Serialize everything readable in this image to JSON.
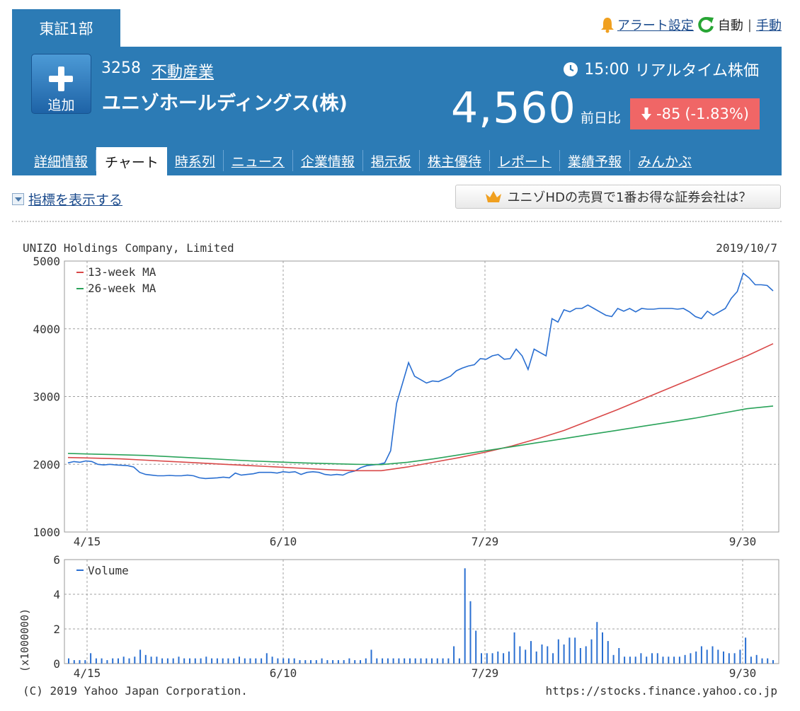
{
  "market": "東証1部",
  "top_links": {
    "alert": "アラート設定",
    "auto": "自動",
    "manual": "手動"
  },
  "stock": {
    "add_label": "追加",
    "code": "3258",
    "sector": "不動産業",
    "name": "ユニゾホールディングス(株)",
    "time": "15:00",
    "realtime_label": "リアルタイム株価",
    "price": "4,560",
    "prev_label": "前日比",
    "change": "-85",
    "change_pct": "(-1.83%)"
  },
  "nav": [
    "詳細情報",
    "チャート",
    "時系列",
    "ニュース",
    "企業情報",
    "掲示板",
    "株主優待",
    "レポート",
    "業績予報",
    "みんかぶ"
  ],
  "nav_active": 1,
  "indicator_toggle": "指標を表示する",
  "broker_button": "ユニゾHDの売買で1番お得な証券会社は？",
  "colors": {
    "header": "#2c7bb5",
    "change_bg": "#f06666",
    "price_line": "#2a6fd1",
    "ma13": "#d94848",
    "ma26": "#2aa35a"
  },
  "chart_data": [
    {
      "type": "line",
      "title": "UNIZO Holdings Company, Limited",
      "date": "2019/10/7",
      "x_tick_labels": [
        "4/15",
        "6/10",
        "7/29",
        "9/30"
      ],
      "ylim": [
        1000,
        5000
      ],
      "y_ticks": [
        1000,
        2000,
        3000,
        4000,
        5000
      ],
      "grid": true,
      "legend": "top-left",
      "series": [
        {
          "name": "Price",
          "values": [
            2020,
            2040,
            2030,
            2050,
            2040,
            2000,
            1990,
            2000,
            1990,
            1985,
            1980,
            1960,
            1880,
            1850,
            1840,
            1830,
            1830,
            1835,
            1830,
            1830,
            1840,
            1830,
            1800,
            1790,
            1795,
            1800,
            1810,
            1800,
            1870,
            1840,
            1850,
            1860,
            1880,
            1880,
            1880,
            1870,
            1890,
            1880,
            1890,
            1850,
            1880,
            1890,
            1880,
            1850,
            1840,
            1850,
            1840,
            1880,
            1900,
            1950,
            1980,
            1990,
            2000,
            2020,
            2200,
            2900,
            3200,
            3500,
            3300,
            3250,
            3200,
            3230,
            3220,
            3260,
            3300,
            3380,
            3420,
            3450,
            3470,
            3560,
            3550,
            3600,
            3620,
            3550,
            3560,
            3700,
            3600,
            3400,
            3700,
            3650,
            3600,
            4150,
            4100,
            4280,
            4250,
            4300,
            4300,
            4350,
            4300,
            4250,
            4200,
            4180,
            4300,
            4260,
            4300,
            4250,
            4300,
            4290,
            4290,
            4300,
            4300,
            4300,
            4290,
            4300,
            4250,
            4180,
            4150,
            4260,
            4200,
            4250,
            4300,
            4450,
            4550,
            4820,
            4750,
            4650,
            4650,
            4640,
            4560
          ]
        },
        {
          "name": "13-week MA",
          "values": [
            2100,
            2090,
            2080,
            2060,
            2040,
            2020,
            2000,
            1980,
            1960,
            1940,
            1920,
            1905,
            1905,
            1960,
            2030,
            2100,
            2180,
            2270,
            2380,
            2500,
            2650,
            2800,
            2960,
            3120,
            3280,
            3440,
            3600,
            3780
          ]
        },
        {
          "name": "26-week MA",
          "values": [
            2160,
            2150,
            2140,
            2130,
            2110,
            2090,
            2070,
            2050,
            2035,
            2020,
            2010,
            2000,
            1995,
            2030,
            2080,
            2140,
            2200,
            2260,
            2320,
            2380,
            2440,
            2500,
            2560,
            2620,
            2680,
            2750,
            2820,
            2860
          ]
        }
      ]
    },
    {
      "type": "bar",
      "ylabel": "(x1000000)",
      "x_tick_labels": [
        "4/15",
        "6/10",
        "7/29",
        "9/30"
      ],
      "ylim": [
        0,
        6
      ],
      "y_ticks": [
        0,
        2,
        4,
        6
      ],
      "grid": true,
      "series": [
        {
          "name": "Volume",
          "values": [
            0.3,
            0.2,
            0.2,
            0.2,
            0.6,
            0.3,
            0.3,
            0.2,
            0.3,
            0.3,
            0.4,
            0.3,
            0.4,
            0.8,
            0.5,
            0.4,
            0.4,
            0.3,
            0.3,
            0.3,
            0.4,
            0.3,
            0.3,
            0.3,
            0.3,
            0.4,
            0.3,
            0.3,
            0.3,
            0.3,
            0.3,
            0.4,
            0.3,
            0.3,
            0.3,
            0.3,
            0.6,
            0.4,
            0.3,
            0.3,
            0.3,
            0.3,
            0.2,
            0.2,
            0.2,
            0.2,
            0.3,
            0.2,
            0.2,
            0.2,
            0.2,
            0.3,
            0.2,
            0.2,
            0.3,
            0.8,
            0.3,
            0.3,
            0.3,
            0.3,
            0.3,
            0.3,
            0.3,
            0.3,
            0.3,
            0.3,
            0.3,
            0.3,
            0.3,
            0.3,
            1.0,
            0.3,
            5.5,
            3.6,
            1.9,
            0.6,
            0.6,
            0.6,
            0.7,
            0.6,
            0.7,
            1.8,
            1.0,
            0.8,
            1.3,
            0.7,
            1.1,
            1.0,
            0.6,
            1.4,
            1.1,
            1.5,
            1.5,
            0.9,
            1.0,
            1.4,
            2.4,
            1.8,
            1.3,
            0.5,
            0.9,
            0.4,
            0.4,
            0.4,
            0.6,
            0.4,
            0.6,
            0.6,
            0.4,
            0.4,
            0.4,
            0.4,
            0.5,
            0.6,
            0.7,
            1.0,
            0.8,
            1.0,
            0.8,
            0.7,
            0.6,
            0.6,
            0.8,
            1.5,
            0.4,
            0.5,
            0.3,
            0.3,
            0.2
          ]
        }
      ]
    }
  ],
  "footer": {
    "copyright": "(C) 2019 Yahoo Japan Corporation.",
    "url": "https://stocks.finance.yahoo.co.jp"
  }
}
